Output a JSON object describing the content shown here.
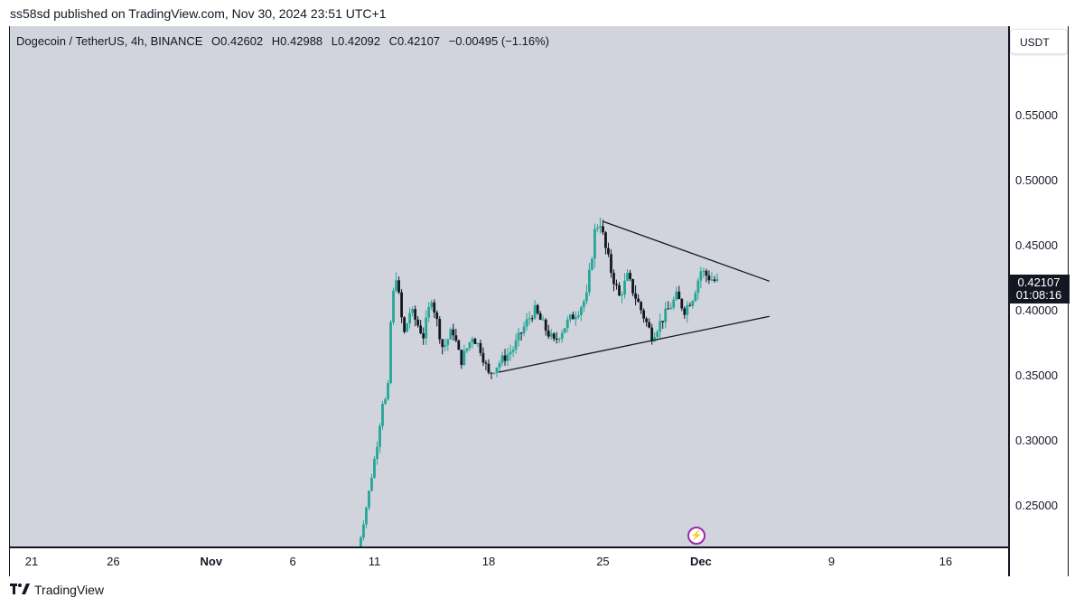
{
  "header": {
    "published": "ss58sd published on TradingView.com, Nov 30, 2024 23:51 UTC+1"
  },
  "symbol": {
    "name": "Dogecoin / TetherUS, 4h, BINANCE",
    "open": "O0.42602",
    "high": "H0.42988",
    "low": "L0.42092",
    "close": "C0.42107",
    "change": "−0.00495 (−1.16%)"
  },
  "currency_label": "USDT",
  "last_price": {
    "value": "0.42107",
    "countdown": "01:08:16"
  },
  "footer": {
    "brand": "TradingView"
  },
  "colors": {
    "up": "#26a69a",
    "down": "#131722",
    "plot_bg": "#d1d4dc",
    "badge": "#9c27b0"
  },
  "chart_data": {
    "type": "candlestick",
    "title": "Dogecoin / TetherUS, 4h, BINANCE",
    "y_tick_labels": [
      "0.25000",
      "0.30000",
      "0.35000",
      "0.40000",
      "0.45000",
      "0.50000",
      "0.55000"
    ],
    "y_ticks": [
      0.25,
      0.3,
      0.35,
      0.4,
      0.45,
      0.5,
      0.55
    ],
    "ylim": [
      0.219,
      0.62
    ],
    "x_tick_labels": [
      {
        "label": "21",
        "day": 0,
        "bold": false
      },
      {
        "label": "26",
        "day": 5,
        "bold": false
      },
      {
        "label": "Nov",
        "day": 11,
        "bold": true
      },
      {
        "label": "6",
        "day": 16,
        "bold": false
      },
      {
        "label": "11",
        "day": 21,
        "bold": false
      },
      {
        "label": "18",
        "day": 28,
        "bold": false
      },
      {
        "label": "25",
        "day": 35,
        "bold": false
      },
      {
        "label": "Dec",
        "day": 41,
        "bold": true
      },
      {
        "label": "9",
        "day": 49,
        "bold": false
      },
      {
        "label": "16",
        "day": 56,
        "bold": false
      }
    ],
    "price_path": [
      [
        20.0,
        0.215
      ],
      [
        20.6,
        0.255
      ],
      [
        21.2,
        0.3
      ],
      [
        21.5,
        0.33
      ],
      [
        21.8,
        0.33
      ],
      [
        22.0,
        0.39
      ],
      [
        22.3,
        0.43
      ],
      [
        22.8,
        0.38
      ],
      [
        23.2,
        0.4
      ],
      [
        24.0,
        0.38
      ],
      [
        24.5,
        0.41
      ],
      [
        25.2,
        0.37
      ],
      [
        25.8,
        0.385
      ],
      [
        26.3,
        0.36
      ],
      [
        27.0,
        0.38
      ],
      [
        27.5,
        0.37
      ],
      [
        28.0,
        0.35
      ],
      [
        28.7,
        0.36
      ],
      [
        29.5,
        0.37
      ],
      [
        30.3,
        0.39
      ],
      [
        30.8,
        0.4
      ],
      [
        31.5,
        0.385
      ],
      [
        32.0,
        0.375
      ],
      [
        32.8,
        0.39
      ],
      [
        33.5,
        0.4
      ],
      [
        34.0,
        0.41
      ],
      [
        34.5,
        0.46
      ],
      [
        34.8,
        0.47
      ],
      [
        35.1,
        0.45
      ],
      [
        35.5,
        0.43
      ],
      [
        36.0,
        0.41
      ],
      [
        36.5,
        0.425
      ],
      [
        37.0,
        0.41
      ],
      [
        37.5,
        0.395
      ],
      [
        38.0,
        0.38
      ],
      [
        38.5,
        0.39
      ],
      [
        39.0,
        0.4
      ],
      [
        39.5,
        0.41
      ],
      [
        40.0,
        0.4
      ],
      [
        40.5,
        0.41
      ],
      [
        41.0,
        0.43
      ],
      [
        41.5,
        0.425
      ],
      [
        42.0,
        0.421
      ]
    ],
    "trendlines": [
      {
        "name": "upper",
        "from": [
          35.0,
          0.468
        ],
        "to": [
          45.2,
          0.422
        ]
      },
      {
        "name": "lower",
        "from": [
          28.6,
          0.352
        ],
        "to": [
          45.2,
          0.395
        ]
      }
    ]
  }
}
